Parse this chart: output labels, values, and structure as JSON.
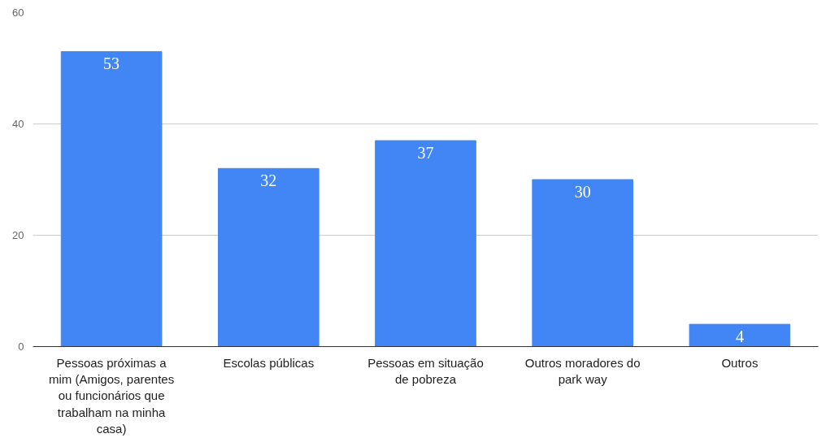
{
  "chart_data": {
    "type": "bar",
    "categories": [
      "Pessoas próximas a mim (Amigos, parentes ou funcionários que trabalham na minha casa)",
      "Escolas públicas",
      "Pessoas em situação de pobreza",
      "Outros moradores do park way",
      "Outros"
    ],
    "values": [
      53,
      32,
      37,
      30,
      4
    ],
    "color": "#4285f4",
    "ylim": [
      0,
      60
    ],
    "yticks": [
      0,
      20,
      40,
      60
    ],
    "grid": "y",
    "data_labels": true
  }
}
